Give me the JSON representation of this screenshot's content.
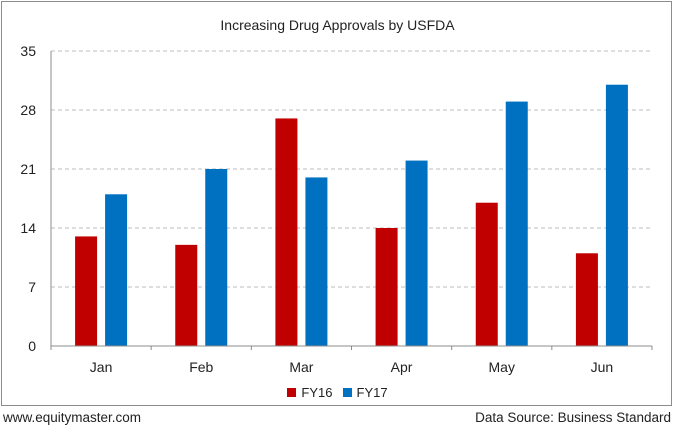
{
  "chart_data": {
    "type": "bar",
    "title": "Increasing Drug Approvals by USFDA",
    "categories": [
      "Jan",
      "Feb",
      "Mar",
      "Apr",
      "May",
      "Jun"
    ],
    "series": [
      {
        "name": "FY16",
        "color": "#c00000",
        "values": [
          13,
          12,
          27,
          14,
          17,
          11
        ]
      },
      {
        "name": "FY17",
        "color": "#0070c0",
        "values": [
          18,
          21,
          20,
          22,
          29,
          31
        ]
      }
    ],
    "ylim": [
      0,
      35
    ],
    "yticks": [
      "0",
      "7",
      "14",
      "21",
      "28",
      "35"
    ],
    "grid": true,
    "legend_position": "bottom"
  },
  "footer": {
    "website": "www.equitymaster.com",
    "source": "Data Source: Business Standard"
  }
}
